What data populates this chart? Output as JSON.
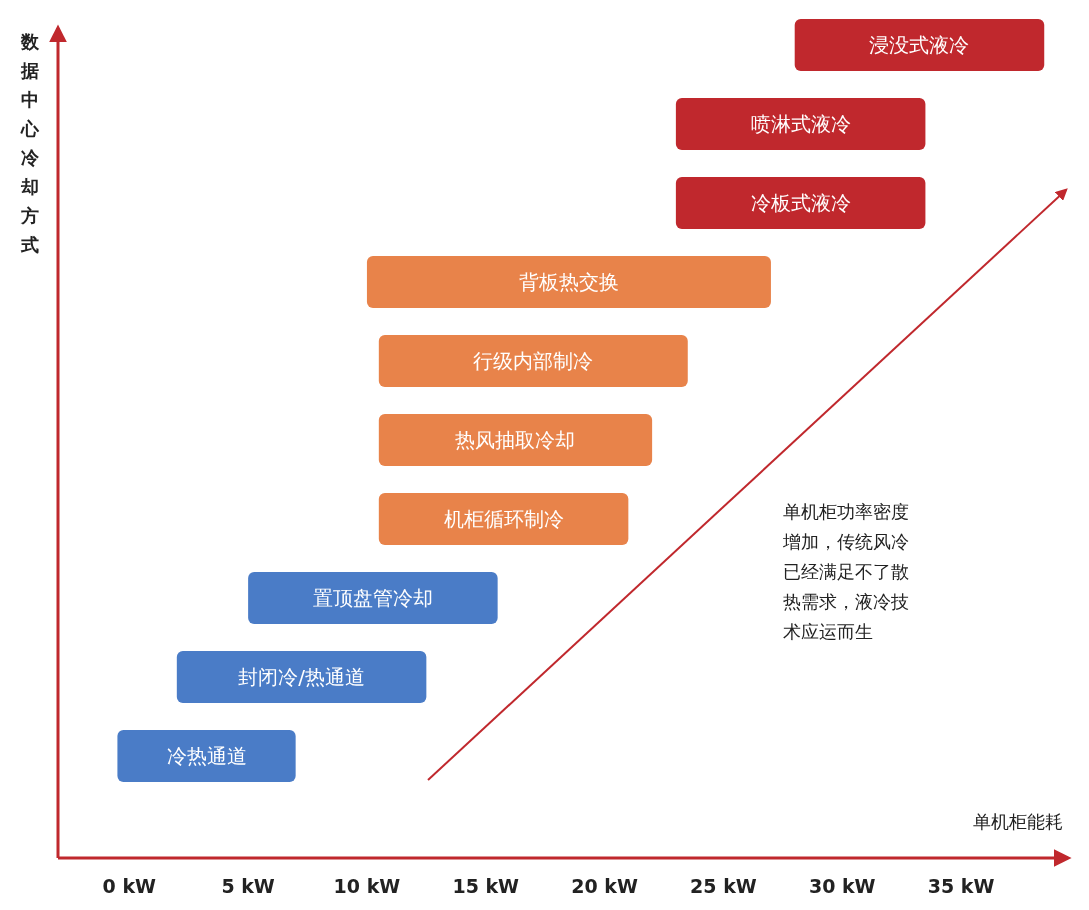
{
  "chart_data": {
    "type": "bar",
    "orientation": "horizontal",
    "xlabel": "单机柜能耗",
    "ylabel": "数据中心冷却方式",
    "categories": [
      "浸没式液冷",
      "喷淋式液冷",
      "冷板式液冷",
      "背板热交换",
      "行级内部制冷",
      "热风抽取冷却",
      "机柜循环制冷",
      "置顶盘管冷却",
      "封闭冷/热通道",
      "冷热通道"
    ],
    "base": [
      28,
      23,
      23,
      10,
      10.5,
      10.5,
      10.5,
      5,
      2,
      -0.5
    ],
    "values": [
      10.5,
      10.5,
      10.5,
      17,
      13,
      11.5,
      10.5,
      10.5,
      10.5,
      7.5
    ],
    "colors": [
      "#c0282d",
      "#c0282d",
      "#c0282d",
      "#e8834a",
      "#e8834a",
      "#e8834a",
      "#e8834a",
      "#4a7cc7",
      "#4a7cc7",
      "#4a7cc7"
    ],
    "xlim": [
      -3,
      39.5
    ],
    "xticks": [
      {
        "value": 0,
        "label": "0 kW"
      },
      {
        "value": 5,
        "label": "5 kW"
      },
      {
        "value": 10,
        "label": "10 kW"
      },
      {
        "value": 15,
        "label": "15 kW"
      },
      {
        "value": 20,
        "label": "20 kW"
      },
      {
        "value": 25,
        "label": "25 kW"
      },
      {
        "value": 30,
        "label": "30 kW"
      },
      {
        "value": 35,
        "label": "35 kW"
      }
    ],
    "tick_labels": "x",
    "annotations": [
      "单机柜功率密度增加，传统风冷已经满足不了散热需求，液冷技术应运而生"
    ]
  }
}
